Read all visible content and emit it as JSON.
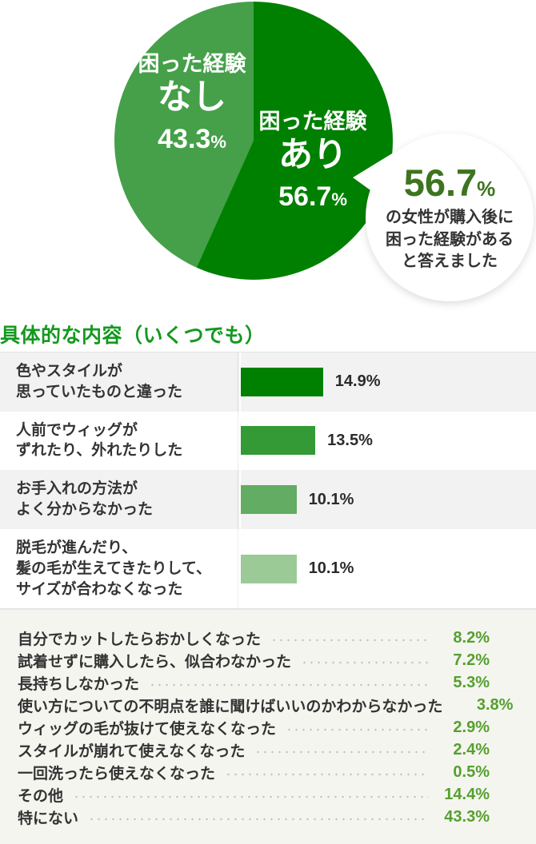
{
  "pie": {
    "segments": [
      {
        "name": "困った経験あり",
        "label_top": "困った経験",
        "label_main": "あり",
        "value": "56.7",
        "unit": "%",
        "pct": 56.7,
        "color": "#008000"
      },
      {
        "name": "困った経験なし",
        "label_top": "困った経験",
        "label_main": "なし",
        "value": "43.3",
        "unit": "%",
        "pct": 43.3,
        "color": "#45a049"
      }
    ]
  },
  "callout": {
    "value": "56.7",
    "unit": "%",
    "line1": "の女性が購入後に",
    "line2": "困った経験がある",
    "line3": "と答えました"
  },
  "section": {
    "title": "具体的な内容（いくつでも）"
  },
  "bar_chart": {
    "rows": [
      {
        "label": "色やスタイルが\n思っていたものと違った",
        "value_label": "14.9%",
        "pct": 14.9,
        "color": "#008000"
      },
      {
        "label": "人前でウィッグが\nずれたり、外れたりした",
        "value_label": "13.5%",
        "pct": 13.5,
        "color": "#339a35"
      },
      {
        "label": "お手入れの方法が\nよく分からなかった",
        "value_label": "10.1%",
        "pct": 10.1,
        "color": "#63ac63"
      },
      {
        "label": "脱毛が進んだり、\n髪の毛が生えてきたりして、\nサイズが合わなくなった",
        "value_label": "10.1%",
        "pct": 10.1,
        "color": "#9cca96"
      }
    ]
  },
  "list": {
    "items": [
      {
        "label": "自分でカットしたらおかしくなった",
        "value": "8.2%"
      },
      {
        "label": "試着せずに購入したら、似合わなかった",
        "value": "7.2%"
      },
      {
        "label": "長持ちしなかった",
        "value": "5.3%"
      },
      {
        "label": "使い方についての不明点を誰に聞けばいいのかわからなかった",
        "value": "3.8%"
      },
      {
        "label": "ウィッグの毛が抜けて使えなくなった",
        "value": "2.9%"
      },
      {
        "label": "スタイルが崩れて使えなくなった",
        "value": "2.4%"
      },
      {
        "label": "一回洗ったら使えなくなった",
        "value": "0.5%"
      },
      {
        "label": "その他",
        "value": "14.4%"
      },
      {
        "label": "特にない",
        "value": "43.3%"
      }
    ]
  },
  "chart_data": [
    {
      "type": "pie",
      "title": "",
      "labels": [
        "困った経験あり",
        "困った経験なし"
      ],
      "values": [
        56.7,
        43.3
      ],
      "colors": [
        "#008000",
        "#45a049"
      ],
      "start_angle": "12時位置から時計回り",
      "annotation": "56.7%の女性が購入後に困った経験があると答えました",
      "legend_position": "inside"
    },
    {
      "type": "bar",
      "orientation": "horizontal",
      "title": "具体的な内容（いくつでも）",
      "categories": [
        "色やスタイルが思っていたものと違った",
        "人前でウィッグがずれたり、外れたりした",
        "お手入れの方法がよく分からなかった",
        "脱毛が進んだり、髪の毛が生えてきたりして、サイズが合わなくなった"
      ],
      "values": [
        14.9,
        13.5,
        10.1,
        10.1
      ],
      "data_labels": [
        "14.9%",
        "13.5%",
        "10.1%",
        "10.1%"
      ],
      "colors": [
        "#008000",
        "#339a35",
        "#63ac63",
        "#9cca96"
      ],
      "xlabel": "",
      "ylabel": "",
      "grid": false
    },
    {
      "type": "table",
      "title": "",
      "categories": [
        "自分でカットしたらおかしくなった",
        "試着せずに購入したら、似合わなかった",
        "長持ちしなかった",
        "使い方についての不明点を誰に聞けばいいのかわからなかった",
        "ウィッグの毛が抜けて使えなくなった",
        "スタイルが崩れて使えなくなった",
        "一回洗ったら使えなくなった",
        "その他",
        "特にない"
      ],
      "values": [
        8.2,
        7.2,
        5.3,
        3.8,
        2.9,
        2.4,
        0.5,
        14.4,
        43.3
      ]
    }
  ],
  "colors": {
    "pie_dark_green": "#008000",
    "pie_light_green": "#45a049",
    "title_green": "#13991f",
    "callout_value_green": "#3d7420",
    "list_value_green": "#55a02e",
    "row_alt_gray": "#f2f2f2",
    "bottom_bg": "#f5f5f0",
    "text_dark": "#333333"
  }
}
